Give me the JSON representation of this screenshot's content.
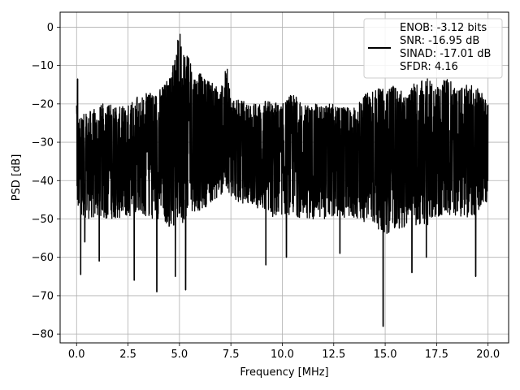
{
  "chart_data": {
    "type": "line",
    "title": "",
    "xlabel": "Frequency [MHz]",
    "ylabel": "PSD [dB]",
    "xlim": [
      -0.8,
      21.0
    ],
    "ylim": [
      -82.3,
      3.9
    ],
    "xticks": [
      0.0,
      2.5,
      5.0,
      7.5,
      10.0,
      12.5,
      15.0,
      17.5,
      20.0
    ],
    "xtick_labels": [
      "0.0",
      "2.5",
      "5.0",
      "7.5",
      "10.0",
      "12.5",
      "15.0",
      "17.5",
      "20.0"
    ],
    "yticks": [
      0,
      -10,
      -20,
      -30,
      -40,
      -50,
      -60,
      -70,
      -80
    ],
    "ytick_labels": [
      "0",
      "−10",
      "−20",
      "−30",
      "−40",
      "−50",
      "−60",
      "−70",
      "−80"
    ],
    "grid": true,
    "legend_position": "upper right",
    "legend_lines": [
      "ENOB: -3.12 bits",
      "SNR: -16.95 dB",
      "SINAD: -17.01 dB",
      "SFDR: 4.16"
    ],
    "series_color": "#000000",
    "envelope": {
      "x": [
        0.0,
        0.05,
        0.5,
        1.0,
        1.5,
        2.0,
        2.5,
        3.0,
        3.5,
        4.0,
        4.5,
        4.8,
        5.0,
        5.3,
        5.6,
        6.0,
        6.5,
        7.0,
        7.3,
        7.6,
        8.0,
        8.5,
        9.0,
        9.5,
        10.0,
        10.5,
        11.0,
        11.5,
        12.0,
        12.5,
        13.0,
        13.5,
        14.0,
        14.5,
        15.0,
        15.5,
        16.0,
        16.5,
        17.0,
        17.5,
        18.0,
        18.5,
        19.0,
        19.5,
        20.0
      ],
      "upper": [
        -13.5,
        -24,
        -22,
        -21,
        -19,
        -21,
        -20,
        -18,
        -17,
        -16,
        -13,
        -8,
        0,
        -6,
        -10,
        -12,
        -14,
        -16,
        -10,
        -19,
        -19,
        -20,
        -19,
        -19,
        -20,
        -17,
        -20,
        -20,
        -20,
        -20,
        -21,
        -21,
        -17,
        -16,
        -16,
        -15,
        -18,
        -14,
        -13,
        -16,
        -13,
        -16,
        -15,
        -15,
        -20
      ],
      "lower": [
        -41,
        -48,
        -50,
        -50,
        -50,
        -50,
        -50,
        -48,
        -50,
        -50,
        -52,
        -52,
        -52,
        -50,
        -48,
        -48,
        -46,
        -44,
        -42,
        -45,
        -46,
        -46,
        -48,
        -50,
        -49,
        -49,
        -50,
        -50,
        -50,
        -50,
        -50,
        -50,
        -51,
        -52,
        -54,
        -53,
        -52,
        -52,
        -52,
        -50,
        -50,
        -49,
        -50,
        -49,
        -45
      ]
    },
    "spikes": [
      {
        "x": 0.05,
        "y": -13.5
      },
      {
        "x": 0.2,
        "y": -64.5
      },
      {
        "x": 0.4,
        "y": -56
      },
      {
        "x": 1.1,
        "y": -61
      },
      {
        "x": 2.8,
        "y": -66
      },
      {
        "x": 3.9,
        "y": -69
      },
      {
        "x": 4.8,
        "y": -65
      },
      {
        "x": 5.3,
        "y": -68.5
      },
      {
        "x": 9.2,
        "y": -62
      },
      {
        "x": 10.2,
        "y": -60
      },
      {
        "x": 12.8,
        "y": -59
      },
      {
        "x": 14.9,
        "y": -78
      },
      {
        "x": 16.3,
        "y": -64
      },
      {
        "x": 17.0,
        "y": -60
      },
      {
        "x": 19.4,
        "y": -65
      }
    ]
  }
}
